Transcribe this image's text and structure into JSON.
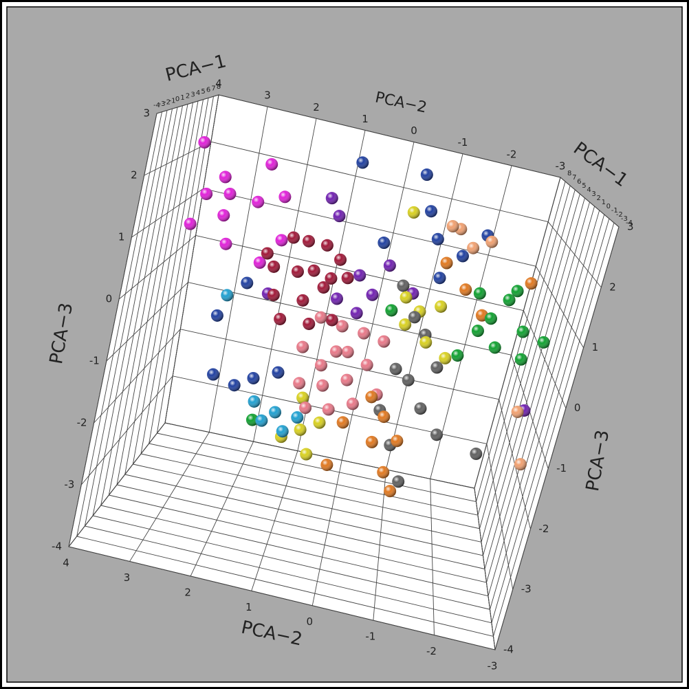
{
  "chart_data": {
    "type": "scatter3d",
    "xlabel": "PCA−1",
    "ylabel": "PCA−2",
    "zlabel": "PCA−3",
    "xlim": [
      -4,
      8
    ],
    "xticks": [
      -4,
      -3,
      -2,
      -1,
      0,
      1,
      2,
      3,
      4,
      5,
      6,
      7,
      8
    ],
    "ylim": [
      -3,
      4
    ],
    "yticks": [
      -3,
      -2,
      -1,
      0,
      1,
      2,
      3,
      4
    ],
    "zlim": [
      -4,
      3
    ],
    "zticks": [
      -4,
      -3,
      -2,
      -1,
      0,
      1,
      2,
      3
    ],
    "grid": true,
    "series": [
      {
        "color": "#e020d8",
        "x": [
          2,
          3,
          2,
          3,
          2,
          3,
          2,
          1,
          4,
          3,
          3,
          2
        ],
        "y": [
          3.6,
          3.2,
          2.4,
          2.1,
          3.4,
          3.1,
          2.9,
          3.5,
          2.6,
          2.3,
          2.0,
          3.0
        ],
        "z": [
          2.4,
          1.8,
          2.3,
          1.7,
          1.5,
          1.1,
          0.7,
          1.0,
          1.4,
          0.4,
          0.9,
          1.6
        ]
      },
      {
        "color": "#2040a0",
        "x": [
          4,
          5,
          4,
          3,
          1,
          1,
          1,
          2,
          3,
          4,
          4,
          2,
          3,
          1
        ],
        "y": [
          0.9,
          -0.3,
          -0.5,
          -1.2,
          2.6,
          2.2,
          1.9,
          2.8,
          -0.7,
          -1.6,
          0.2,
          2.4,
          -0.9,
          1.5
        ],
        "z": [
          2.6,
          2.6,
          2.0,
          1.4,
          -1.5,
          -1.6,
          -1.4,
          -0.6,
          1.6,
          1.8,
          1.2,
          0.1,
          0.9,
          -1.2
        ]
      },
      {
        "color": "#7020b0",
        "x": [
          3,
          3,
          2,
          4,
          4,
          2,
          4,
          3,
          2,
          3
        ],
        "y": [
          0.5,
          0.2,
          0.8,
          0.0,
          1.3,
          2.0,
          1.1,
          0.4,
          -2.9,
          -0.5
        ],
        "z": [
          0.6,
          0.3,
          0.2,
          0.8,
          1.8,
          0.0,
          1.5,
          -0.1,
          -1.0,
          0.5
        ]
      },
      {
        "color": "#f0a070",
        "x": [
          4,
          4,
          4,
          3,
          1,
          1
        ],
        "y": [
          -1.1,
          -1.4,
          -1.7,
          -0.9,
          -2.7,
          -3.0
        ],
        "z": [
          1.8,
          1.5,
          1.7,
          1.9,
          -0.9,
          -1.8
        ]
      },
      {
        "color": "#10a030",
        "x": [
          2,
          2,
          3,
          2,
          3,
          2,
          2,
          2,
          2,
          3,
          3,
          2
        ],
        "y": [
          -1.6,
          -1.9,
          -2.2,
          -2.5,
          -1.8,
          -2.1,
          -2.6,
          -2.9,
          -1.5,
          -2.3,
          -0.2,
          1.8
        ],
        "z": [
          0.9,
          0.5,
          0.8,
          0.4,
          0.1,
          0.0,
          -0.1,
          0.3,
          -0.3,
          1.0,
          0.1,
          -2.3
        ]
      },
      {
        "color": "#606060",
        "x": [
          3,
          2,
          3,
          2,
          2,
          3,
          2,
          2,
          1,
          2,
          1,
          1
        ],
        "y": [
          -0.3,
          -0.6,
          -0.9,
          -1.2,
          -0.5,
          -0.8,
          -1.1,
          -0.4,
          -0.7,
          -1.5,
          -2.2,
          -1.0
        ],
        "z": [
          0.6,
          0.2,
          -0.2,
          -0.6,
          -0.8,
          -1.1,
          -1.4,
          -1.6,
          -2.0,
          -1.8,
          -1.8,
          -2.6
        ]
      },
      {
        "color": "#e07820",
        "x": [
          2,
          2,
          1,
          2,
          1,
          1,
          3,
          3,
          4,
          1,
          1,
          3
        ],
        "y": [
          -0.2,
          -0.5,
          -0.8,
          -0.4,
          -0.7,
          0.2,
          -1.4,
          -1.8,
          -1.0,
          0.3,
          -0.9,
          -2.5
        ],
        "z": [
          -1.4,
          -1.7,
          -1.9,
          -2.2,
          -2.5,
          -1.8,
          0.8,
          0.4,
          1.1,
          -2.6,
          -2.8,
          1.2
        ]
      },
      {
        "color": "#d8d020",
        "x": [
          3,
          3,
          2,
          3,
          2,
          2,
          1,
          1,
          1,
          1,
          2,
          4
        ],
        "y": [
          -0.4,
          -0.7,
          -1.0,
          -0.5,
          -0.9,
          -1.3,
          0.6,
          0.9,
          1.2,
          0.7,
          1.0,
          -0.2
        ],
        "z": [
          0.4,
          0.2,
          0.5,
          -0.1,
          -0.2,
          -0.4,
          -1.9,
          -2.1,
          -2.3,
          -2.5,
          -1.7,
          1.9
        ]
      },
      {
        "color": "#20a0d0",
        "x": [
          1,
          1,
          1,
          1,
          1,
          2
        ],
        "y": [
          1.4,
          1.6,
          1.2,
          1.8,
          1.0,
          2.7
        ],
        "z": [
          -1.9,
          -2.1,
          -2.2,
          -1.8,
          -1.9,
          -0.2
        ]
      },
      {
        "color": "#a01838",
        "x": [
          3,
          2,
          4,
          3,
          2,
          3,
          2,
          4,
          3,
          2,
          3,
          4,
          2,
          3,
          2,
          3
        ],
        "y": [
          1.8,
          1.5,
          1.2,
          0.9,
          2.0,
          1.6,
          1.3,
          1.0,
          0.7,
          1.9,
          1.4,
          1.1,
          0.8,
          2.2,
          1.7,
          1.2
        ],
        "z": [
          1.0,
          1.1,
          0.9,
          0.8,
          0.5,
          0.4,
          0.6,
          0.3,
          0.5,
          0.0,
          -0.1,
          0.1,
          -0.2,
          0.6,
          -0.4,
          -0.5
        ]
      },
      {
        "color": "#e87888",
        "x": [
          2,
          3,
          2,
          3,
          2,
          1,
          2,
          3,
          1,
          2,
          2,
          3,
          1,
          2,
          2,
          1
        ],
        "y": [
          1.0,
          0.6,
          0.2,
          -0.2,
          1.2,
          0.8,
          0.4,
          0.0,
          1.1,
          0.7,
          0.3,
          -0.3,
          0.9,
          0.5,
          0.1,
          0.6
        ],
        "z": [
          -0.2,
          -0.4,
          -0.3,
          -0.5,
          -0.8,
          -0.9,
          -0.7,
          -1.0,
          -1.3,
          -1.4,
          -1.2,
          -1.5,
          -1.7,
          -1.8,
          -1.6,
          -0.6
        ]
      }
    ]
  }
}
